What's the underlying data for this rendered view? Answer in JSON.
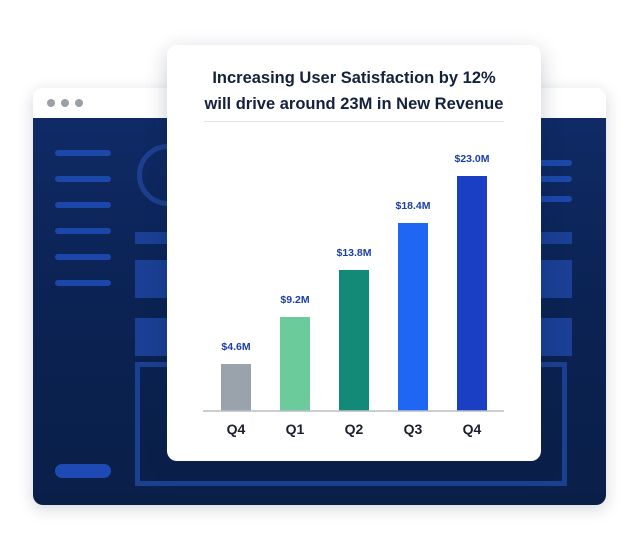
{
  "chart_data": {
    "type": "bar",
    "title_line1": "Increasing User Satisfaction by 12%",
    "title_line2": "will drive around 23M in New Revenue",
    "categories": [
      "Q4",
      "Q1",
      "Q2",
      "Q3",
      "Q4"
    ],
    "values": [
      4.6,
      9.2,
      13.8,
      18.4,
      23.0
    ],
    "value_labels": [
      "$4.6M",
      "$9.2M",
      "$13.8M",
      "$18.4M",
      "$23.0M"
    ],
    "colors": [
      "#9aa3ab",
      "#6ccb9a",
      "#138a77",
      "#1f66f5",
      "#1a3fc4"
    ],
    "label_color": "#1a3fa8",
    "ylim": [
      0,
      23.0
    ],
    "grid": false,
    "legend": "none"
  },
  "background_window": {
    "dot_color": "#9aa0a8",
    "body_color": "#0f2a66"
  }
}
